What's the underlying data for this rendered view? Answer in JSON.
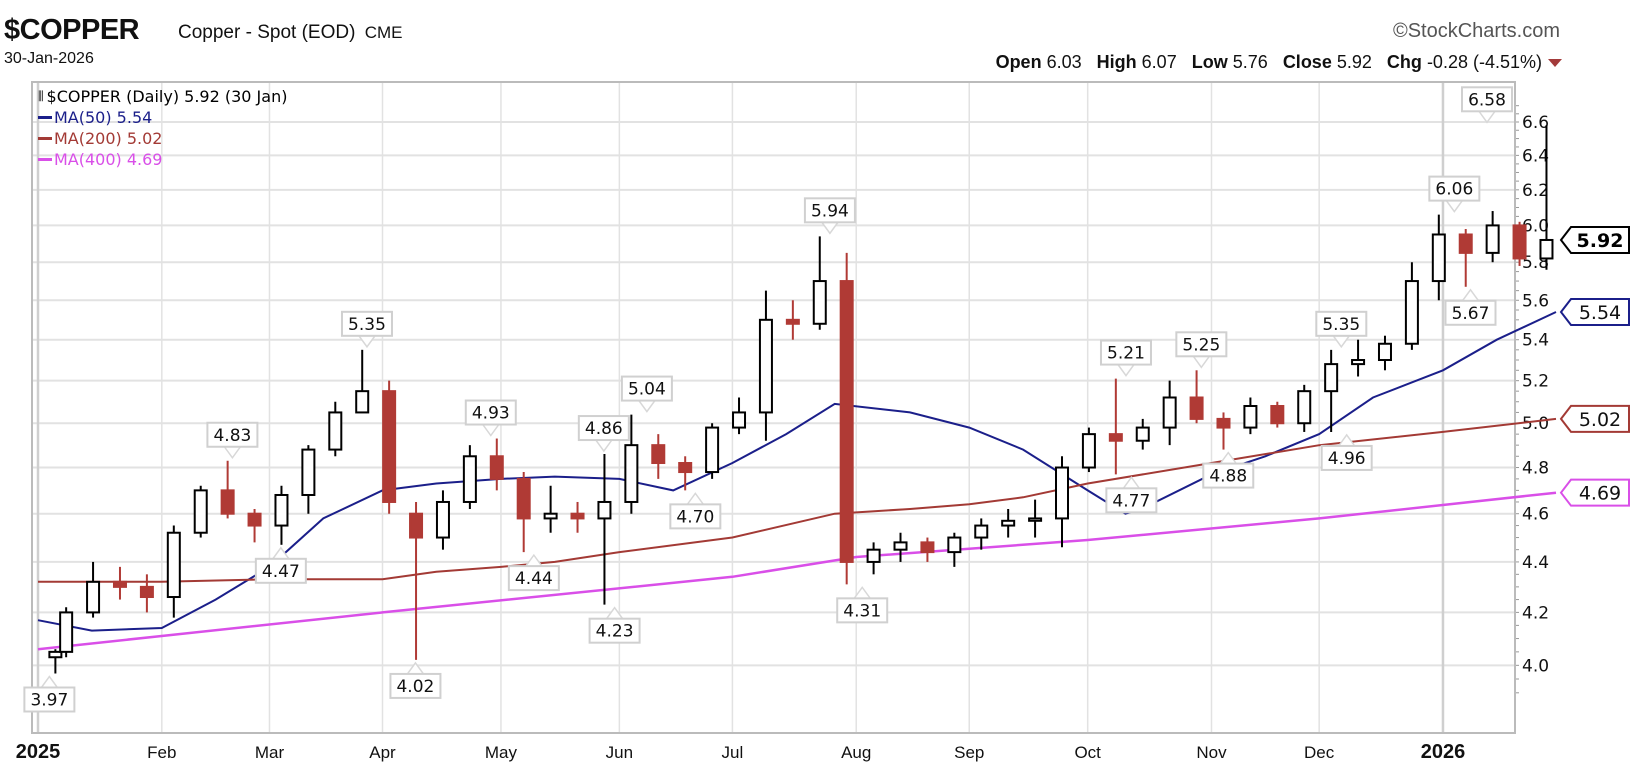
{
  "header": {
    "symbol": "$COPPER",
    "name": "Copper - Spot (EOD)",
    "exchange": "CME",
    "date": "30-Jan-2026",
    "brand": "©StockCharts.com",
    "open_label": "Open",
    "open": "6.03",
    "high_label": "High",
    "high": "6.07",
    "low_label": "Low",
    "low": "5.76",
    "close_label": "Close",
    "close": "5.92",
    "chg_label": "Chg",
    "chg": "-0.28 (-4.51%)",
    "chg_direction": "down"
  },
  "legend": {
    "price": "$COPPER (Daily) 5.92 (30 Jan)",
    "ma50": "MA(50) 5.54",
    "ma200": "MA(200) 5.02",
    "ma400": "MA(400) 4.69"
  },
  "chart_data": {
    "type": "candlestick",
    "scale": "log",
    "grid": true,
    "ylim": [
      3.9,
      6.7
    ],
    "y_ticks": [
      "4.0",
      "4.2",
      "4.4",
      "4.6",
      "4.8",
      "5.0",
      "5.2",
      "5.4",
      "5.6",
      "5.8",
      "6.0",
      "6.2",
      "6.4",
      "6.6"
    ],
    "x_ticks": [
      {
        "label": "2025",
        "date": "2025-01-01",
        "bold": true
      },
      {
        "label": "Feb",
        "date": "2025-02-01"
      },
      {
        "label": "Mar",
        "date": "2025-03-01"
      },
      {
        "label": "Apr",
        "date": "2025-04-01"
      },
      {
        "label": "May",
        "date": "2025-05-01"
      },
      {
        "label": "Jun",
        "date": "2025-06-01"
      },
      {
        "label": "Jul",
        "date": "2025-07-01"
      },
      {
        "label": "Aug",
        "date": "2025-08-01"
      },
      {
        "label": "Sep",
        "date": "2025-09-01"
      },
      {
        "label": "Oct",
        "date": "2025-10-01"
      },
      {
        "label": "Nov",
        "date": "2025-11-01"
      },
      {
        "label": "Dec",
        "date": "2025-12-01"
      },
      {
        "label": "2026",
        "date": "2026-01-01",
        "bold": true
      }
    ],
    "colors": {
      "up": "#000000",
      "down": "#b03a35",
      "ma50": "#1b1f8a",
      "ma200": "#a33a35",
      "ma400": "#d94fe8",
      "grid": "#e2e2e2"
    },
    "candles": [
      [
        "2025-01-02",
        4.03,
        4.06,
        3.97,
        4.05
      ],
      [
        "2025-01-06",
        4.05,
        4.22,
        4.03,
        4.2
      ],
      [
        "2025-01-13",
        4.2,
        4.4,
        4.18,
        4.32
      ],
      [
        "2025-01-20",
        4.32,
        4.38,
        4.25,
        4.3
      ],
      [
        "2025-01-27",
        4.3,
        4.35,
        4.2,
        4.26
      ],
      [
        "2025-02-03",
        4.26,
        4.55,
        4.18,
        4.52
      ],
      [
        "2025-02-10",
        4.52,
        4.72,
        4.5,
        4.7
      ],
      [
        "2025-02-17",
        4.7,
        4.83,
        4.58,
        4.6
      ],
      [
        "2025-02-24",
        4.6,
        4.62,
        4.48,
        4.55
      ],
      [
        "2025-03-03",
        4.55,
        4.72,
        4.47,
        4.68
      ],
      [
        "2025-03-10",
        4.68,
        4.9,
        4.6,
        4.88
      ],
      [
        "2025-03-17",
        4.88,
        5.1,
        4.85,
        5.05
      ],
      [
        "2025-03-24",
        5.05,
        5.35,
        5.05,
        5.15
      ],
      [
        "2025-03-31",
        5.15,
        5.2,
        4.6,
        4.65
      ],
      [
        "2025-04-07",
        4.6,
        4.65,
        4.02,
        4.5
      ],
      [
        "2025-04-14",
        4.5,
        4.7,
        4.45,
        4.65
      ],
      [
        "2025-04-21",
        4.65,
        4.9,
        4.62,
        4.85
      ],
      [
        "2025-04-28",
        4.85,
        4.93,
        4.7,
        4.75
      ],
      [
        "2025-05-05",
        4.75,
        4.78,
        4.44,
        4.58
      ],
      [
        "2025-05-12",
        4.58,
        4.72,
        4.52,
        4.6
      ],
      [
        "2025-05-19",
        4.6,
        4.65,
        4.52,
        4.58
      ],
      [
        "2025-05-26",
        4.58,
        4.86,
        4.23,
        4.65
      ],
      [
        "2025-06-02",
        4.65,
        5.04,
        4.6,
        4.9
      ],
      [
        "2025-06-09",
        4.9,
        4.95,
        4.75,
        4.82
      ],
      [
        "2025-06-16",
        4.82,
        4.85,
        4.7,
        4.78
      ],
      [
        "2025-06-23",
        4.78,
        5.0,
        4.75,
        4.98
      ],
      [
        "2025-06-30",
        4.98,
        5.12,
        4.95,
        5.05
      ],
      [
        "2025-07-07",
        5.05,
        5.65,
        4.92,
        5.5
      ],
      [
        "2025-07-14",
        5.5,
        5.6,
        5.4,
        5.48
      ],
      [
        "2025-07-21",
        5.48,
        5.94,
        5.45,
        5.7
      ],
      [
        "2025-07-28",
        5.7,
        5.85,
        4.31,
        4.4
      ],
      [
        "2025-08-04",
        4.4,
        4.48,
        4.35,
        4.45
      ],
      [
        "2025-08-11",
        4.45,
        4.52,
        4.4,
        4.48
      ],
      [
        "2025-08-18",
        4.48,
        4.5,
        4.4,
        4.44
      ],
      [
        "2025-08-25",
        4.44,
        4.52,
        4.38,
        4.5
      ],
      [
        "2025-09-01",
        4.5,
        4.58,
        4.45,
        4.55
      ],
      [
        "2025-09-08",
        4.55,
        4.62,
        4.5,
        4.57
      ],
      [
        "2025-09-15",
        4.57,
        4.66,
        4.5,
        4.58
      ],
      [
        "2025-09-22",
        4.58,
        4.85,
        4.46,
        4.8
      ],
      [
        "2025-09-29",
        4.8,
        4.98,
        4.78,
        4.95
      ],
      [
        "2025-10-06",
        4.95,
        5.21,
        4.77,
        4.92
      ],
      [
        "2025-10-13",
        4.92,
        5.02,
        4.88,
        4.98
      ],
      [
        "2025-10-20",
        4.98,
        5.2,
        4.9,
        5.12
      ],
      [
        "2025-10-27",
        5.12,
        5.25,
        5.0,
        5.02
      ],
      [
        "2025-11-03",
        5.02,
        5.05,
        4.88,
        4.98
      ],
      [
        "2025-11-10",
        4.98,
        5.12,
        4.95,
        5.08
      ],
      [
        "2025-11-17",
        5.08,
        5.1,
        4.98,
        5.0
      ],
      [
        "2025-11-24",
        5.0,
        5.18,
        4.96,
        5.15
      ],
      [
        "2025-12-01",
        5.15,
        5.35,
        4.96,
        5.28
      ],
      [
        "2025-12-08",
        5.28,
        5.4,
        5.22,
        5.3
      ],
      [
        "2025-12-15",
        5.3,
        5.42,
        5.25,
        5.38
      ],
      [
        "2025-12-22",
        5.38,
        5.8,
        5.35,
        5.7
      ],
      [
        "2025-12-29",
        5.7,
        6.06,
        5.6,
        5.95
      ],
      [
        "2026-01-05",
        5.95,
        5.98,
        5.67,
        5.85
      ],
      [
        "2026-01-12",
        5.85,
        6.08,
        5.8,
        6.0
      ],
      [
        "2026-01-19",
        6.0,
        6.02,
        5.78,
        5.82
      ],
      [
        "2026-01-26",
        5.82,
        6.58,
        5.76,
        5.92
      ]
    ],
    "series": [
      {
        "name": "MA(50)",
        "key": "ma50",
        "points": [
          [
            "2025-01-01",
            4.17
          ],
          [
            "2025-01-15",
            4.13
          ],
          [
            "2025-02-01",
            4.14
          ],
          [
            "2025-02-15",
            4.25
          ],
          [
            "2025-03-01",
            4.38
          ],
          [
            "2025-03-15",
            4.58
          ],
          [
            "2025-04-01",
            4.7
          ],
          [
            "2025-04-15",
            4.73
          ],
          [
            "2025-05-01",
            4.75
          ],
          [
            "2025-05-15",
            4.76
          ],
          [
            "2025-06-01",
            4.75
          ],
          [
            "2025-06-15",
            4.7
          ],
          [
            "2025-07-01",
            4.82
          ],
          [
            "2025-07-15",
            4.95
          ],
          [
            "2025-07-28",
            5.09
          ],
          [
            "2025-08-15",
            5.05
          ],
          [
            "2025-09-01",
            4.98
          ],
          [
            "2025-09-15",
            4.88
          ],
          [
            "2025-10-01",
            4.7
          ],
          [
            "2025-10-10",
            4.6
          ],
          [
            "2025-10-15",
            4.62
          ],
          [
            "2025-11-01",
            4.77
          ],
          [
            "2025-11-15",
            4.85
          ],
          [
            "2025-12-01",
            4.95
          ],
          [
            "2025-12-15",
            5.12
          ],
          [
            "2026-01-01",
            5.25
          ],
          [
            "2026-01-15",
            5.4
          ],
          [
            "2026-01-30",
            5.54
          ]
        ]
      },
      {
        "name": "MA(200)",
        "key": "ma200",
        "points": [
          [
            "2025-01-01",
            4.32
          ],
          [
            "2025-02-01",
            4.32
          ],
          [
            "2025-03-01",
            4.33
          ],
          [
            "2025-04-01",
            4.33
          ],
          [
            "2025-04-15",
            4.36
          ],
          [
            "2025-05-01",
            4.38
          ],
          [
            "2025-05-15",
            4.4
          ],
          [
            "2025-06-01",
            4.44
          ],
          [
            "2025-07-01",
            4.5
          ],
          [
            "2025-07-28",
            4.6
          ],
          [
            "2025-08-15",
            4.62
          ],
          [
            "2025-09-01",
            4.64
          ],
          [
            "2025-09-15",
            4.67
          ],
          [
            "2025-10-01",
            4.73
          ],
          [
            "2025-11-01",
            4.82
          ],
          [
            "2025-12-01",
            4.9
          ],
          [
            "2026-01-01",
            4.96
          ],
          [
            "2026-01-30",
            5.02
          ]
        ]
      },
      {
        "name": "MA(400)",
        "key": "ma400",
        "points": [
          [
            "2025-01-01",
            4.06
          ],
          [
            "2025-04-01",
            4.2
          ],
          [
            "2025-07-01",
            4.34
          ],
          [
            "2025-08-01",
            4.42
          ],
          [
            "2025-10-01",
            4.49
          ],
          [
            "2025-12-01",
            4.58
          ],
          [
            "2026-01-30",
            4.69
          ]
        ]
      }
    ],
    "annotations": [
      {
        "text": "3.97",
        "date": "2025-01-02",
        "value": 3.97,
        "position": "below"
      },
      {
        "text": "4.83",
        "date": "2025-02-19",
        "value": 4.83,
        "position": "above"
      },
      {
        "text": "4.47",
        "date": "2025-03-04",
        "value": 4.47,
        "position": "below"
      },
      {
        "text": "5.35",
        "date": "2025-03-26",
        "value": 5.35,
        "position": "above"
      },
      {
        "text": "4.02",
        "date": "2025-04-08",
        "value": 4.02,
        "position": "below"
      },
      {
        "text": "4.93",
        "date": "2025-04-28",
        "value": 4.93,
        "position": "above"
      },
      {
        "text": "4.44",
        "date": "2025-05-08",
        "value": 4.44,
        "position": "below"
      },
      {
        "text": "4.86",
        "date": "2025-05-27",
        "value": 4.86,
        "position": "above"
      },
      {
        "text": "4.23",
        "date": "2025-05-29",
        "value": 4.23,
        "position": "below"
      },
      {
        "text": "5.04",
        "date": "2025-06-06",
        "value": 5.04,
        "position": "above"
      },
      {
        "text": "4.70",
        "date": "2025-06-19",
        "value": 4.7,
        "position": "below"
      },
      {
        "text": "5.94",
        "date": "2025-07-24",
        "value": 5.94,
        "position": "above"
      },
      {
        "text": "4.31",
        "date": "2025-08-01",
        "value": 4.31,
        "position": "below"
      },
      {
        "text": "5.21",
        "date": "2025-10-09",
        "value": 5.21,
        "position": "above"
      },
      {
        "text": "4.77",
        "date": "2025-10-10",
        "value": 4.77,
        "position": "below"
      },
      {
        "text": "5.25",
        "date": "2025-10-29",
        "value": 5.25,
        "position": "above"
      },
      {
        "text": "4.88",
        "date": "2025-11-05",
        "value": 4.88,
        "position": "below"
      },
      {
        "text": "5.35",
        "date": "2025-12-04",
        "value": 5.35,
        "position": "above"
      },
      {
        "text": "4.96",
        "date": "2025-12-05",
        "value": 4.96,
        "position": "below"
      },
      {
        "text": "6.06",
        "date": "2026-01-02",
        "value": 6.06,
        "position": "above"
      },
      {
        "text": "5.67",
        "date": "2026-01-07",
        "value": 5.67,
        "position": "below"
      },
      {
        "text": "6.58",
        "date": "2026-01-29",
        "value": 6.58,
        "position": "above"
      }
    ],
    "axis_tags": [
      {
        "text": "5.92",
        "value": 5.92,
        "key": "up",
        "bold": true
      },
      {
        "text": "5.54",
        "value": 5.54,
        "key": "ma50"
      },
      {
        "text": "5.02",
        "value": 5.02,
        "key": "ma200"
      },
      {
        "text": "4.69",
        "value": 4.69,
        "key": "ma400"
      }
    ]
  }
}
